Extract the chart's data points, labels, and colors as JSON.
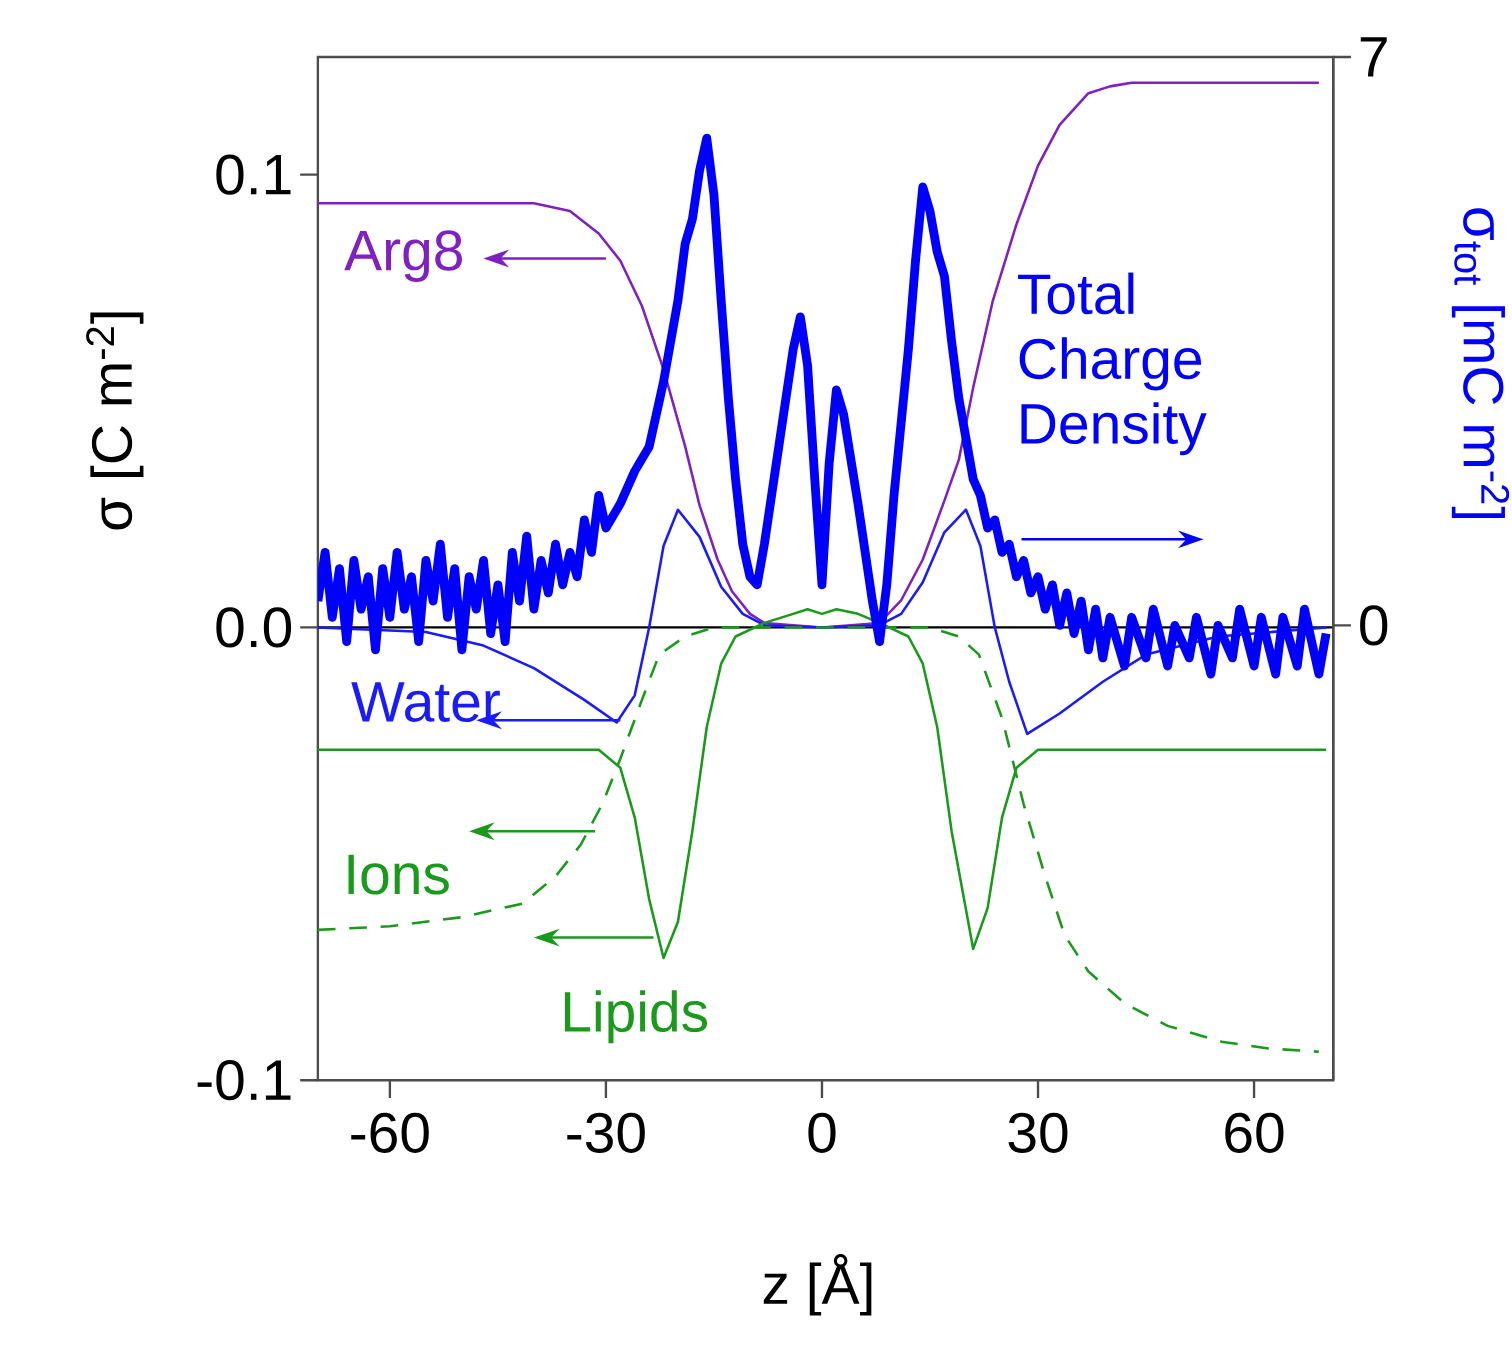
{
  "chart_data": {
    "type": "line",
    "xlabel": "z [Å]",
    "ylabel": "σ [C m$^{-2}$]",
    "y2label": "σ$_{tot}$ [mC m$^{-2}$]",
    "xlim": [
      -70,
      71
    ],
    "xticks": [
      -60,
      -30,
      0,
      30,
      60
    ],
    "ylim": [
      -0.1,
      0.126
    ],
    "yticks": [
      {
        "value": -0.1,
        "label": "-0.1"
      },
      {
        "value": 0,
        "label": "0.0"
      },
      {
        "value": 0.1,
        "label": "0.1"
      }
    ],
    "y2lim": [
      -5.6,
      7
    ],
    "y2ticks": [
      0,
      7
    ],
    "marker": "none",
    "legend": "left",
    "ref_lines": [
      {
        "axis": "y",
        "value": 0,
        "color": "#000000"
      }
    ],
    "series": [
      {
        "name": "Arg8",
        "color": "#8020c0",
        "line_style": "solid",
        "x": [
          -70,
          -40,
          -35,
          -31,
          -28,
          -25,
          -22,
          -19,
          -17,
          -14.5,
          -12.5,
          -10,
          -8,
          0,
          8,
          11,
          14,
          17,
          19,
          21,
          23.7,
          27,
          30,
          33,
          37,
          40,
          43,
          50,
          60,
          69
        ],
        "values": [
          0.0937,
          0.0937,
          0.092,
          0.087,
          0.081,
          0.071,
          0.057,
          0.04,
          0.027,
          0.015,
          0.008,
          0.003,
          0.001,
          0.0,
          0.001,
          0.006,
          0.015,
          0.028,
          0.037,
          0.053,
          0.072,
          0.089,
          0.102,
          0.111,
          0.118,
          0.1195,
          0.1203,
          0.1203,
          0.1203,
          0.1203
        ]
      },
      {
        "name": "Water",
        "color": "#1a1aff",
        "line_style": "solid",
        "x": [
          -70,
          -55,
          -47,
          -40,
          -33,
          -28.5,
          -26,
          -24,
          -22,
          -20,
          -17,
          -14,
          -11,
          -8,
          0,
          8,
          11,
          14,
          17,
          20,
          22,
          24,
          26,
          28.5,
          33,
          39,
          45,
          55,
          70
        ],
        "values": [
          0,
          -0.001,
          -0.004,
          -0.009,
          -0.016,
          -0.021,
          -0.015,
          0,
          0.018,
          0.026,
          0.02,
          0.009,
          0.003,
          0.0005,
          0,
          0.0005,
          0.003,
          0.01,
          0.021,
          0.026,
          0.018,
          0,
          -0.012,
          -0.0235,
          -0.019,
          -0.012,
          -0.006,
          -0.002,
          0
        ]
      },
      {
        "name": "Ions",
        "color": "#1a9a1a",
        "line_style": "dashed",
        "x": [
          -70,
          -60,
          -50,
          -41.6,
          -37,
          -33.5,
          -30.5,
          -28,
          -25,
          -22.6,
          -19,
          -15,
          0,
          15,
          19,
          21.8,
          25,
          28,
          31,
          33.7,
          37,
          42,
          48,
          55.5,
          62,
          69
        ],
        "values": [
          -0.0668,
          -0.066,
          -0.064,
          -0.061,
          -0.055,
          -0.048,
          -0.039,
          -0.029,
          -0.016,
          -0.006,
          -0.002,
          0,
          0,
          0,
          -0.002,
          -0.006,
          -0.02,
          -0.039,
          -0.055,
          -0.068,
          -0.076,
          -0.083,
          -0.088,
          -0.0915,
          -0.093,
          -0.0937
        ]
      },
      {
        "name": "Lipids",
        "color": "#1a9a1a",
        "line_style": "solid",
        "x": [
          -70,
          -31,
          -28,
          -26,
          -24,
          -22,
          -20,
          -18,
          -16,
          -14,
          -12,
          -8,
          -4,
          -2,
          0,
          2,
          5,
          8,
          12,
          14,
          16,
          18,
          21,
          23,
          25,
          27,
          30,
          70
        ],
        "values": [
          -0.027,
          -0.027,
          -0.031,
          -0.042,
          -0.06,
          -0.073,
          -0.065,
          -0.045,
          -0.022,
          -0.008,
          -0.002,
          0.001,
          0.003,
          0.004,
          0.003,
          0.004,
          0.003,
          0.001,
          -0.002,
          -0.008,
          -0.022,
          -0.045,
          -0.071,
          -0.062,
          -0.042,
          -0.031,
          -0.027,
          -0.027
        ]
      },
      {
        "name": "Total Charge Density",
        "color": "#0000ff",
        "line_style": "solid",
        "axis": "y2",
        "x": [
          -70,
          -69,
          -68,
          -67,
          -66,
          -65,
          -64,
          -63,
          -62,
          -61,
          -60,
          -59,
          -58,
          -57,
          -56,
          -55,
          -54,
          -53,
          -52,
          -51,
          -50,
          -49,
          -48,
          -47,
          -46,
          -45,
          -44,
          -43,
          -42,
          -41,
          -40,
          -39,
          -38,
          -37,
          -36,
          -35,
          -34,
          -33,
          -32,
          -31,
          -30,
          -28,
          -26,
          -24,
          -23,
          -22,
          -21,
          -20,
          -19,
          -18,
          -17,
          -16,
          -15,
          -14,
          -13,
          -12,
          -11,
          -10,
          -9,
          -8,
          -6,
          -4,
          -3,
          -2,
          -1,
          0,
          1,
          2,
          3,
          5,
          7,
          8,
          9,
          10,
          12,
          13,
          14,
          15,
          16,
          17,
          18,
          19,
          20,
          21,
          22,
          23,
          24,
          25,
          26,
          27,
          28,
          29,
          30,
          31,
          32,
          33,
          34,
          35,
          36,
          37,
          38,
          39,
          40,
          42,
          43,
          45,
          46,
          48,
          49,
          51,
          52,
          54,
          55,
          57,
          58,
          60,
          61,
          63,
          64,
          66,
          67,
          69,
          70
        ],
        "values": [
          0.3,
          0.9,
          0.1,
          0.7,
          -0.2,
          0.8,
          0.2,
          0.6,
          -0.3,
          0.7,
          0.1,
          0.9,
          0.2,
          0.6,
          -0.2,
          0.8,
          0.3,
          1.0,
          0.1,
          0.7,
          -0.3,
          0.6,
          0.2,
          0.8,
          -0.1,
          0.5,
          -0.2,
          0.9,
          0.3,
          1.1,
          0.2,
          0.8,
          0.4,
          1.0,
          0.5,
          0.9,
          0.6,
          1.3,
          0.9,
          1.6,
          1.2,
          1.5,
          1.9,
          2.2,
          2.6,
          3.0,
          3.5,
          4.0,
          4.7,
          5.0,
          5.6,
          6.0,
          5.3,
          4.0,
          2.8,
          1.8,
          1.0,
          0.6,
          0.5,
          1.0,
          2.2,
          3.4,
          3.8,
          3.2,
          1.8,
          0.5,
          2.0,
          2.9,
          2.6,
          1.5,
          0.3,
          -0.2,
          0.5,
          1.6,
          3.4,
          4.5,
          5.4,
          5.1,
          4.6,
          4.3,
          3.5,
          2.8,
          2.3,
          1.8,
          1.6,
          1.2,
          1.3,
          0.9,
          1.0,
          0.6,
          0.8,
          0.4,
          0.6,
          0.2,
          0.5,
          0.0,
          0.4,
          -0.1,
          0.3,
          -0.3,
          0.2,
          -0.4,
          0.1,
          -0.5,
          0.1,
          -0.4,
          0.2,
          -0.5,
          0.0,
          -0.4,
          0.1,
          -0.6,
          0.0,
          -0.4,
          0.2,
          -0.5,
          0.1,
          -0.6,
          0.1,
          -0.5,
          0.2,
          -0.6,
          -0.1
        ]
      }
    ]
  }
}
